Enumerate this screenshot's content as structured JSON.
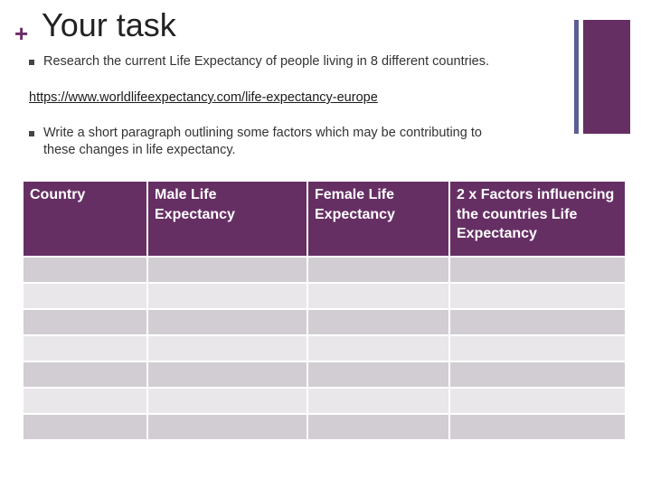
{
  "slide": {
    "plus": "+",
    "title": "Your task",
    "bullet1": "Research the current Life Expectancy of people living in 8 different countries.",
    "link": "https://www.worldlifeexpectancy.com/life-expectancy-europe",
    "bullet2_line1": "Write a short paragraph outlining some factors which may be contributing to",
    "bullet2_line2": "these changes in life expectancy."
  },
  "table": {
    "headers": [
      "Country",
      "Male Life Expectancy",
      "Female Life Expectancy",
      "2 x Factors influencing the countries Life Expectancy"
    ],
    "empty_rows": 7
  },
  "colors": {
    "accent": "#662f64",
    "accent_line": "#5b5f93",
    "row_dark": "#d2cdd3",
    "row_light": "#e9e7ea"
  }
}
